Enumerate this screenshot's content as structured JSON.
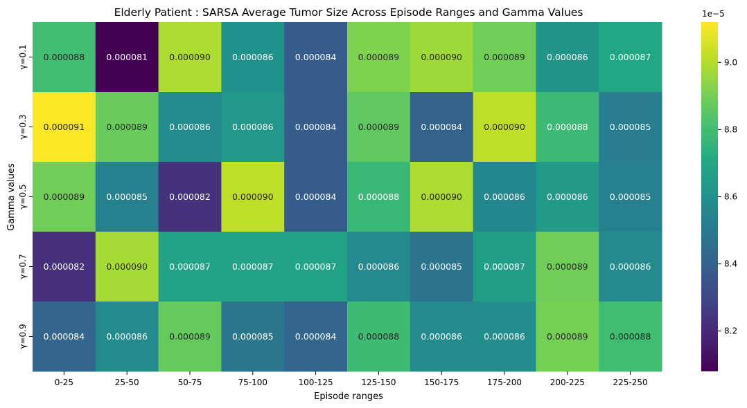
{
  "chart_data": {
    "type": "heatmap",
    "title": "Elderly Patient : SARSA Average Tumor Size Across Episode Ranges and Gamma Values",
    "xlabel": "Episode ranges",
    "ylabel": "Gamma values",
    "x_categories": [
      "0-25",
      "25-50",
      "50-75",
      "75-100",
      "100-125",
      "125-150",
      "150-175",
      "175-200",
      "200-225",
      "225-250"
    ],
    "y_categories": [
      "γ=0.1",
      "γ=0.3",
      "γ=0.5",
      "γ=0.7",
      "γ=0.9"
    ],
    "values": [
      [
        8.8e-05,
        8.08e-05,
        8.99e-05,
        8.6e-05,
        8.38e-05,
        8.92e-05,
        8.97e-05,
        8.89e-05,
        8.62e-05,
        8.7e-05
      ],
      [
        9.12e-05,
        8.88e-05,
        8.58e-05,
        8.63e-05,
        8.38e-05,
        8.86e-05,
        8.41e-05,
        9.02e-05,
        8.78e-05,
        8.52e-05
      ],
      [
        8.89e-05,
        8.53e-05,
        8.23e-05,
        9.02e-05,
        8.38e-05,
        8.77e-05,
        8.99e-05,
        8.56e-05,
        8.64e-05,
        8.53e-05
      ],
      [
        8.22e-05,
        8.98e-05,
        8.68e-05,
        8.68e-05,
        8.68e-05,
        8.57e-05,
        8.48e-05,
        8.66e-05,
        8.89e-05,
        8.57e-05
      ],
      [
        8.42e-05,
        8.57e-05,
        8.87e-05,
        8.49e-05,
        8.42e-05,
        8.79e-05,
        8.57e-05,
        8.58e-05,
        8.9e-05,
        8.8e-05
      ]
    ],
    "cell_labels": [
      [
        "0.000088",
        "0.000081",
        "0.000090",
        "0.000086",
        "0.000084",
        "0.000089",
        "0.000090",
        "0.000089",
        "0.000086",
        "0.000087"
      ],
      [
        "0.000091",
        "0.000089",
        "0.000086",
        "0.000086",
        "0.000084",
        "0.000089",
        "0.000084",
        "0.000090",
        "0.000088",
        "0.000085"
      ],
      [
        "0.000089",
        "0.000085",
        "0.000082",
        "0.000090",
        "0.000084",
        "0.000088",
        "0.000090",
        "0.000086",
        "0.000086",
        "0.000085"
      ],
      [
        "0.000082",
        "0.000090",
        "0.000087",
        "0.000087",
        "0.000087",
        "0.000086",
        "0.000085",
        "0.000087",
        "0.000089",
        "0.000086"
      ],
      [
        "0.000084",
        "0.000086",
        "0.000089",
        "0.000085",
        "0.000084",
        "0.000088",
        "0.000086",
        "0.000086",
        "0.000089",
        "0.000088"
      ]
    ],
    "colormap": "viridis",
    "colorbar": {
      "range": [
        8.08e-05,
        9.12e-05
      ],
      "ticks": [
        8.2e-05,
        8.4e-05,
        8.6e-05,
        8.8e-05,
        9e-05
      ],
      "tick_labels": [
        "8.2",
        "8.4",
        "8.6",
        "8.8",
        "9.0"
      ],
      "exponent_label": "1e−5"
    },
    "grid": false,
    "legend": "colorbar-right"
  }
}
